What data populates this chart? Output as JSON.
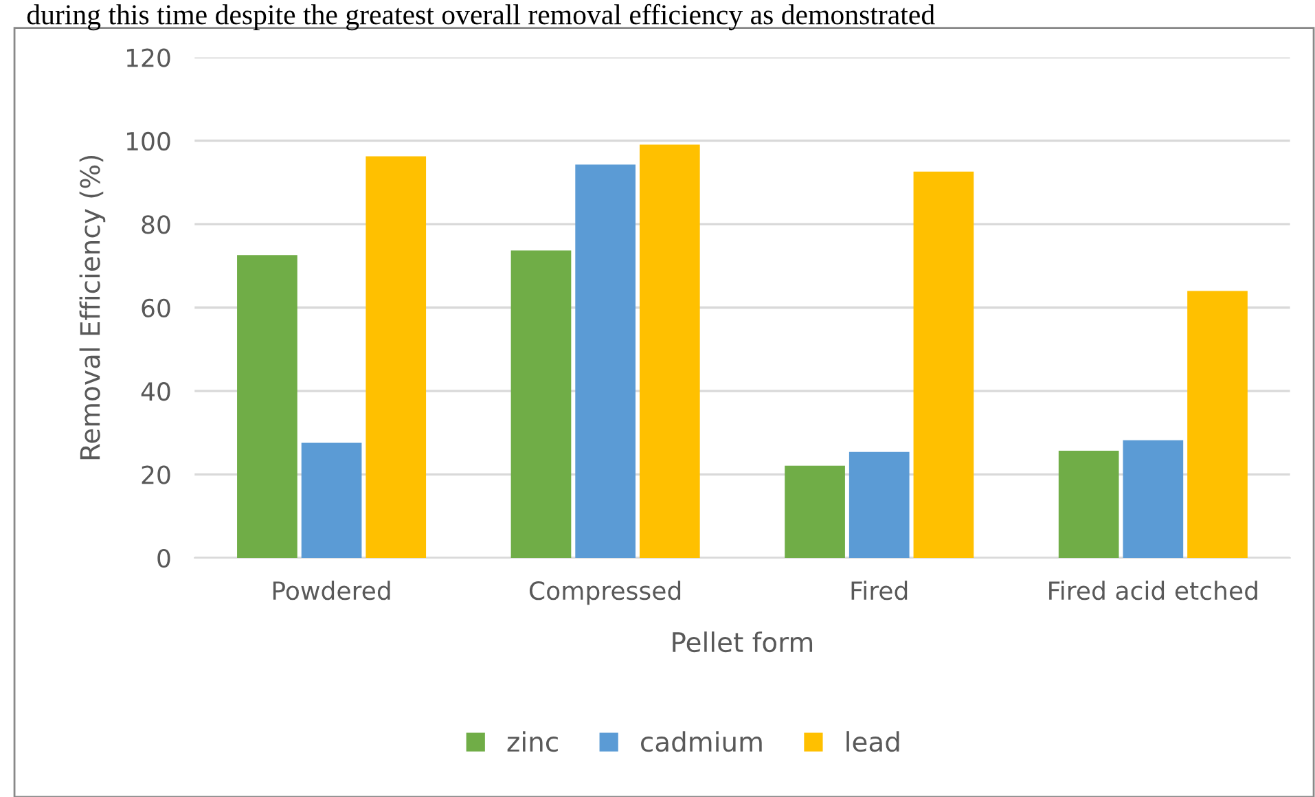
{
  "chart_data": {
    "type": "bar",
    "xlabel": "Pellet form",
    "ylabel": "Removal Efficiency (%)",
    "annotations": [
      "during this time despite the greatest overall removal efficiency as demonstrated"
    ],
    "categories": [
      "Powdered",
      "Compressed",
      "Fired",
      "Fired acid etched"
    ],
    "series": [
      {
        "name": "zinc",
        "color": "#70ad47",
        "values": [
          72.6,
          73.7,
          22.1,
          25.7
        ]
      },
      {
        "name": "cadmium",
        "color": "#5b9bd5",
        "values": [
          27.6,
          94.3,
          25.4,
          28.2
        ]
      },
      {
        "name": "lead",
        "color": "#ffc000",
        "values": [
          96.3,
          99.1,
          92.6,
          64.0
        ]
      }
    ],
    "ylim": [
      0,
      120
    ],
    "yticks": [
      0,
      20,
      40,
      60,
      80,
      100,
      120
    ],
    "grid": "y",
    "legend": "bottom"
  }
}
